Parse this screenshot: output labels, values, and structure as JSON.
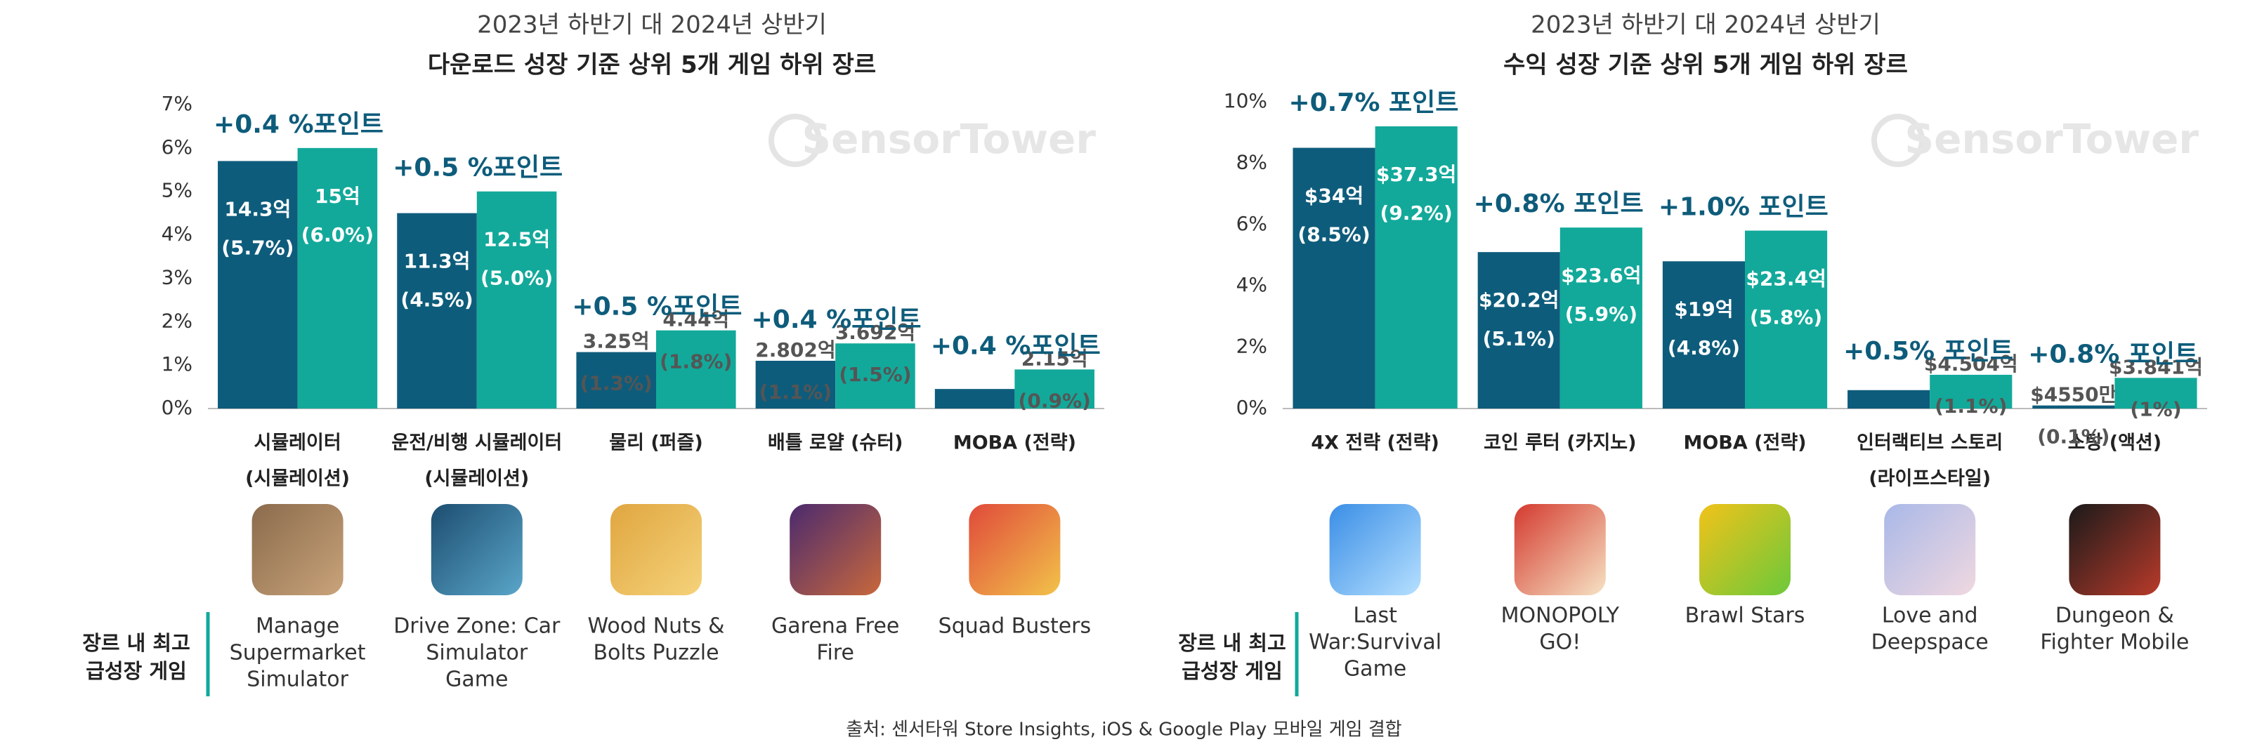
{
  "chart_data": [
    {
      "type": "bar",
      "title": "2023년 하반기 대 2024년 상반기",
      "subtitle": "다운로드 성장 기준 상위 5개 게임 하위 장르",
      "watermark": "SensorTower",
      "categories": [
        [
          "시뮬레이터",
          "(시뮬레이션)"
        ],
        [
          "운전/비행 시뮬레이터",
          "(시뮬레이션)"
        ],
        [
          "물리 (퍼즐)"
        ],
        [
          "배틀 로얄 (슈터)"
        ],
        [
          "MOBA (전략)"
        ]
      ],
      "series": [
        {
          "color": "#0e5c7b",
          "values": [
            5.7,
            4.5,
            1.3,
            1.1,
            0.45
          ],
          "value_labels": [
            [
              "14.3억",
              "(5.7%)"
            ],
            [
              "11.3억",
              "(4.5%)"
            ],
            [
              "3.25억",
              "(1.3%)"
            ],
            [
              "2.802억",
              "(1.1%)"
            ],
            null
          ]
        },
        {
          "color": "#12a99a",
          "values": [
            6.0,
            5.0,
            1.8,
            1.5,
            0.9
          ],
          "value_labels": [
            [
              "15억",
              "(6.0%)"
            ],
            [
              "12.5억",
              "(5.0%)"
            ],
            [
              "4.44억",
              "(1.8%)"
            ],
            [
              "3.692억",
              "(1.5%)"
            ],
            [
              "2.15억",
              "(0.9%)"
            ]
          ]
        }
      ],
      "annotations": [
        "+0.4 %포인트",
        "+0.5 %포인트",
        "+0.5 %포인트",
        "+0.4 %포인트",
        "+0.4 %포인트"
      ],
      "ylim": [
        0,
        7
      ],
      "yticks": [
        {
          "value": 0,
          "label": "0%"
        },
        {
          "value": 1,
          "label": "1%"
        },
        {
          "value": 2,
          "label": "2%"
        },
        {
          "value": 3,
          "label": "3%"
        },
        {
          "value": 4,
          "label": "4%"
        },
        {
          "value": 5,
          "label": "5%"
        },
        {
          "value": 6,
          "label": "6%"
        },
        {
          "value": 7,
          "label": "7%"
        }
      ],
      "row_label": [
        "장르 내 최고",
        "급성장 게임"
      ],
      "games": [
        [
          "Manage",
          "Supermarket",
          "Simulator"
        ],
        [
          "Drive Zone: Car",
          "Simulator",
          "Game"
        ],
        [
          "Wood Nuts &",
          "Bolts Puzzle"
        ],
        [
          "Garena Free",
          "Fire"
        ],
        [
          "Squad Busters"
        ]
      ]
    },
    {
      "type": "bar",
      "title": "2023년 하반기 대 2024년 상반기",
      "subtitle": "수익 성장 기준 상위 5개 게임 하위 장르",
      "watermark": "SensorTower",
      "categories": [
        [
          "4X 전략 (전략)"
        ],
        [
          "코인 루터 (카지노)"
        ],
        [
          "MOBA (전략)"
        ],
        [
          "인터랙티브 스토리",
          "(라이프스타일)"
        ],
        [
          "소탕 (액션)"
        ]
      ],
      "series": [
        {
          "color": "#0e5c7b",
          "values": [
            8.5,
            5.1,
            4.8,
            0.6,
            0.1
          ],
          "value_labels": [
            [
              "$34억",
              "(8.5%)"
            ],
            [
              "$20.2억",
              "(5.1%)"
            ],
            [
              "$19억",
              "(4.8%)"
            ],
            null,
            [
              "$4550만",
              "(0.1%)"
            ]
          ]
        },
        {
          "color": "#12a99a",
          "values": [
            9.2,
            5.9,
            5.8,
            1.1,
            1.0
          ],
          "value_labels": [
            [
              "$37.3억",
              "(9.2%)"
            ],
            [
              "$23.6억",
              "(5.9%)"
            ],
            [
              "$23.4억",
              "(5.8%)"
            ],
            [
              "$4.504억",
              "(1.1%)"
            ],
            [
              "$3.841억",
              "(1%)"
            ]
          ]
        }
      ],
      "annotations": [
        "+0.7% 포인트",
        "+0.8% 포인트",
        "+1.0% 포인트",
        "+0.5% 포인트",
        "+0.8% 포인트"
      ],
      "ylim": [
        0,
        10
      ],
      "yticks": [
        {
          "value": 0,
          "label": "0%"
        },
        {
          "value": 2,
          "label": "2%"
        },
        {
          "value": 4,
          "label": "4%"
        },
        {
          "value": 6,
          "label": "6%"
        },
        {
          "value": 8,
          "label": "8%"
        },
        {
          "value": 10,
          "label": "10%"
        }
      ],
      "row_label": [
        "장르 내 최고",
        "급성장 게임"
      ],
      "games": [
        [
          "Last",
          "War:Survival",
          "Game"
        ],
        [
          "MONOPOLY",
          "GO!"
        ],
        [
          "Brawl Stars"
        ],
        [
          "Love and",
          "Deepspace"
        ],
        [
          "Dungeon &",
          "Fighter Mobile"
        ]
      ]
    }
  ],
  "footer": "출처: 센서타워 Store Insights, iOS & Google Play 모바일 게임 결합"
}
